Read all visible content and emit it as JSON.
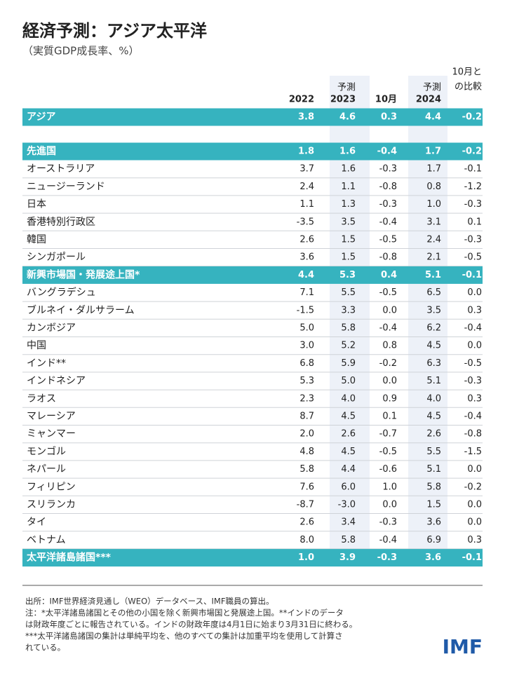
{
  "header": {
    "title": "経済予測：アジア太平洋",
    "subtitle": "（実質GDP成長率、%）"
  },
  "table": {
    "columns": [
      {
        "lines": [
          "2022"
        ]
      },
      {
        "lines": [
          "予測",
          "2023"
        ]
      },
      {
        "lines": [
          "10月"
        ]
      },
      {
        "lines": [
          "予測",
          "2024"
        ]
      },
      {
        "lines": [
          "10月と",
          "の比較"
        ]
      }
    ],
    "rows": [
      {
        "label": "アジア",
        "values": [
          "3.8",
          "4.6",
          "0.3",
          "4.4",
          "-0.2"
        ],
        "highlight": true
      },
      {
        "label": "先進国",
        "values": [
          "1.8",
          "1.6",
          "-0.4",
          "1.7",
          "-0.2"
        ],
        "highlight": true
      },
      {
        "label": "オーストラリア",
        "values": [
          "3.7",
          "1.6",
          "-0.3",
          "1.7",
          "-0.1"
        ]
      },
      {
        "label": "ニュージーランド",
        "values": [
          "2.4",
          "1.1",
          "-0.8",
          "0.8",
          "-1.2"
        ]
      },
      {
        "label": "日本",
        "values": [
          "1.1",
          "1.3",
          "-0.3",
          "1.0",
          "-0.3"
        ]
      },
      {
        "label": "香港特別行政区",
        "values": [
          "-3.5",
          "3.5",
          "-0.4",
          "3.1",
          "0.1"
        ]
      },
      {
        "label": "韓国",
        "values": [
          "2.6",
          "1.5",
          "-0.5",
          "2.4",
          "-0.3"
        ]
      },
      {
        "label": "シンガポール",
        "values": [
          "3.6",
          "1.5",
          "-0.8",
          "2.1",
          "-0.5"
        ]
      },
      {
        "label": "新興市場国・発展途上国*",
        "values": [
          "4.4",
          "5.3",
          "0.4",
          "5.1",
          "-0.1"
        ],
        "highlight": true
      },
      {
        "label": "バングラデシュ",
        "values": [
          "7.1",
          "5.5",
          "-0.5",
          "6.5",
          "0.0"
        ]
      },
      {
        "label": "ブルネイ・ダルサラーム",
        "values": [
          "-1.5",
          "3.3",
          "0.0",
          "3.5",
          "0.3"
        ]
      },
      {
        "label": "カンボジア",
        "values": [
          "5.0",
          "5.8",
          "-0.4",
          "6.2",
          "-0.4"
        ]
      },
      {
        "label": "中国",
        "values": [
          "3.0",
          "5.2",
          "0.8",
          "4.5",
          "0.0"
        ]
      },
      {
        "label": "インド**",
        "values": [
          "6.8",
          "5.9",
          "-0.2",
          "6.3",
          "-0.5"
        ]
      },
      {
        "label": "インドネシア",
        "values": [
          "5.3",
          "5.0",
          "0.0",
          "5.1",
          "-0.3"
        ]
      },
      {
        "label": "ラオス",
        "values": [
          "2.3",
          "4.0",
          "0.9",
          "4.0",
          "0.3"
        ]
      },
      {
        "label": "マレーシア",
        "values": [
          "8.7",
          "4.5",
          "0.1",
          "4.5",
          "-0.4"
        ]
      },
      {
        "label": "ミャンマー",
        "values": [
          "2.0",
          "2.6",
          "-0.7",
          "2.6",
          "-0.8"
        ]
      },
      {
        "label": "モンゴル",
        "values": [
          "4.8",
          "4.5",
          "-0.5",
          "5.5",
          "-1.5"
        ]
      },
      {
        "label": "ネパール",
        "values": [
          "5.8",
          "4.4",
          "-0.6",
          "5.1",
          "0.0"
        ]
      },
      {
        "label": "フィリピン",
        "values": [
          "7.6",
          "6.0",
          "1.0",
          "5.8",
          "-0.2"
        ]
      },
      {
        "label": "スリランカ",
        "values": [
          "-8.7",
          "-3.0",
          "0.0",
          "1.5",
          "0.0"
        ]
      },
      {
        "label": "タイ",
        "values": [
          "2.6",
          "3.4",
          "-0.3",
          "3.6",
          "0.0"
        ]
      },
      {
        "label": "ベトナム",
        "values": [
          "8.0",
          "5.8",
          "-0.4",
          "6.9",
          "0.3"
        ]
      },
      {
        "label": "太平洋諸島諸国***",
        "values": [
          "1.0",
          "3.9",
          "-0.3",
          "3.6",
          "-0.1"
        ],
        "highlight": true
      }
    ]
  },
  "footnotes": [
    "出所：IMF世界経済見通し（WEO）データベース、IMF職員の算出。",
    "注：*太平洋諸島諸国とその他の小国を除く新興市場国と発展途上国。**インドのデータ",
    "は財政年度ごとに報告されている。インドの財政年度は4月1日に始まり3月31日に終わる。",
    "***太平洋諸島諸国の集計は単純平均を、他のすべての集計は加重平均を使用して計算さ",
    "れている。"
  ],
  "logo": "IMF"
}
